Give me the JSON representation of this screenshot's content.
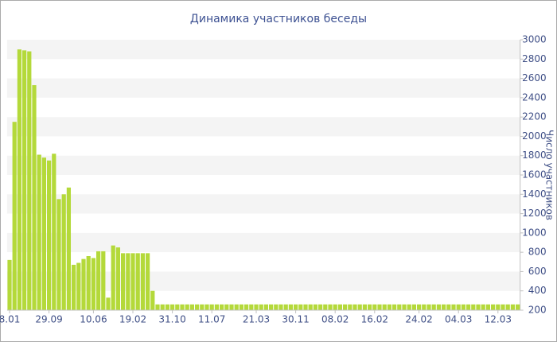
{
  "chart_data": {
    "type": "bar",
    "title": "Динамика участников беседы",
    "y_label": "Число участников",
    "categories": [
      "8.01",
      null,
      null,
      null,
      null,
      null,
      null,
      null,
      "29.09",
      null,
      null,
      null,
      null,
      null,
      null,
      null,
      null,
      "10.06",
      null,
      null,
      null,
      null,
      null,
      null,
      null,
      "19.02",
      null,
      null,
      null,
      null,
      null,
      null,
      null,
      "31.10",
      null,
      null,
      null,
      null,
      null,
      null,
      null,
      "11.07",
      null,
      null,
      null,
      null,
      null,
      null,
      null,
      null,
      "21.03",
      null,
      null,
      null,
      null,
      null,
      null,
      null,
      "30.11",
      null,
      null,
      null,
      null,
      null,
      null,
      null,
      "08.02",
      null,
      null,
      null,
      null,
      null,
      null,
      null,
      "16.02",
      null,
      null,
      null,
      null,
      null,
      null,
      null,
      null,
      "24.02",
      null,
      null,
      null,
      null,
      null,
      null,
      null,
      "04.03",
      null,
      null,
      null,
      null,
      null,
      null,
      null,
      "12.03",
      null,
      null,
      null,
      null
    ],
    "values": [
      720,
      2150,
      2900,
      2890,
      2880,
      2530,
      1810,
      1780,
      1750,
      1820,
      1350,
      1400,
      1470,
      670,
      690,
      730,
      760,
      740,
      810,
      810,
      330,
      870,
      850,
      790,
      790,
      790,
      790,
      790,
      790,
      400,
      260,
      260,
      260,
      260,
      260,
      260,
      260,
      260,
      260,
      260,
      260,
      260,
      260,
      260,
      260,
      260,
      260,
      260,
      260,
      260,
      260,
      260,
      260,
      260,
      260,
      260,
      260,
      260,
      260,
      260,
      260,
      260,
      260,
      260,
      260,
      260,
      260,
      260,
      260,
      260,
      260,
      260,
      260,
      260,
      260,
      260,
      260,
      260,
      260,
      260,
      260,
      260,
      260,
      260,
      260,
      260,
      260,
      260,
      260,
      260,
      260,
      260,
      260,
      260,
      260,
      260,
      260,
      260,
      260,
      260,
      260,
      260,
      260,
      260
    ],
    "color": "#b4d93a",
    "ylim": [
      200,
      3000
    ],
    "yticks": [
      200,
      400,
      600,
      800,
      1000,
      1200,
      1400,
      1600,
      1800,
      2000,
      2200,
      2400,
      2600,
      2800,
      3000
    ],
    "grid": true,
    "y_axis_side": "right"
  }
}
